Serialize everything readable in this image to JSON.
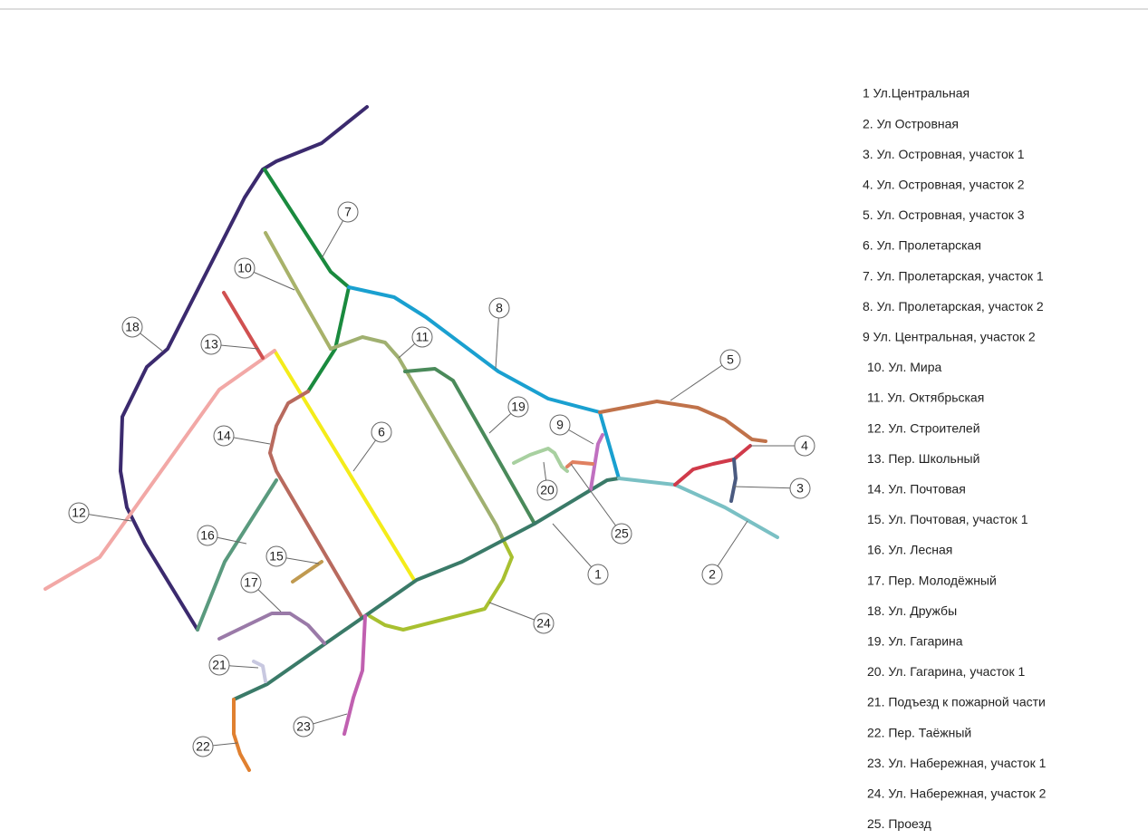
{
  "legend": [
    "1 Ул.Центральная",
    "2. Ул Островная",
    "3. Ул. Островная, участок 1",
    "4. Ул. Островная, участок 2",
    "5. Ул. Островная, участок 3",
    "6. Ул. Пролетарская",
    "7. Ул. Пролетарская, участок 1",
    "8. Ул. Пролетарская, участок 2",
    "9 Ул. Центральная, участок 2",
    "10. Ул. Мира",
    "11. Ул. Октябрьская",
    "12. Ул. Строителей",
    "13. Пер. Школьный",
    "14. Ул. Почтовая",
    "15. Ул. Почтовая, участок 1",
    "16. Ул. Лесная",
    "17. Пер. Молодёжный",
    "18. Ул. Дружбы",
    "19. Ул. Гагарина",
    "20. Ул. Гагарина, участок 1",
    "21. Подъезд к пожарной части",
    "22. Пер. Таёжный",
    "23. Ул. Набережная, участок 1",
    "24. Ул. Набережная, участок 2",
    "25. Проезд"
  ],
  "labels": [
    "1",
    "2",
    "3",
    "4",
    "5",
    "6",
    "7",
    "8",
    "9",
    "10",
    "11",
    "12",
    "13",
    "14",
    "15",
    "16",
    "17",
    "18",
    "19",
    "20",
    "21",
    "22",
    "23",
    "24",
    "25"
  ]
}
